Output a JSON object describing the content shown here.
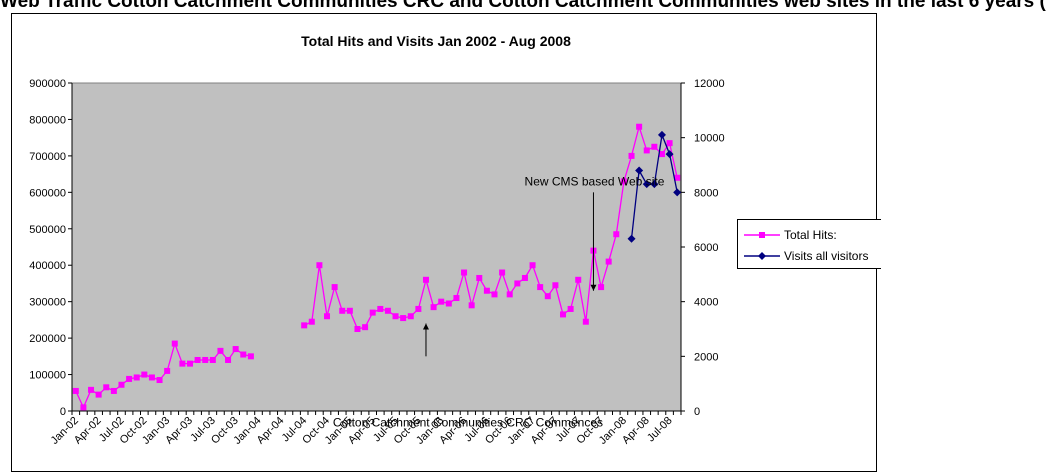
{
  "page_heading": "Web Traffic Cotton Catchment Communities CRC and Cotton Catchment Communities web sites in the last 6 years (",
  "chart_data": {
    "type": "line",
    "title": "Total Hits and Visits  Jan 2002 - Aug 2008",
    "x_labels": [
      "Jan-02",
      "Apr-02",
      "Jul-02",
      "Oct-02",
      "Jan-03",
      "Apr-03",
      "Jul-03",
      "Oct-03",
      "Jan-04",
      "Apr-04",
      "Jul-04",
      "Oct-04",
      "Jan-05",
      "Apr-05",
      "Jul-05",
      "Oct-05",
      "Jan-06",
      "Apr-06",
      "Jul-06",
      "Oct-06",
      "Jan-07",
      "Apr-07",
      "Jul-07",
      "Oct-07",
      "Jan-08",
      "Apr-08",
      "Jul-08"
    ],
    "y_left": {
      "min": 0,
      "max": 900000,
      "step": 100000,
      "ticks": [
        "0",
        "100000",
        "200000",
        "300000",
        "400000",
        "500000",
        "600000",
        "700000",
        "800000",
        "900000"
      ]
    },
    "y_right": {
      "min": 0,
      "max": 12000,
      "step": 2000,
      "ticks": [
        "0",
        "2000",
        "4000",
        "6000",
        "8000",
        "10000",
        "12000"
      ]
    },
    "plot_background": "#c0c0c0",
    "grid": false,
    "legend_position": "right",
    "series": [
      {
        "name": "Total Hits:",
        "axis": "left",
        "color": "#ff00ff",
        "marker": "square",
        "values": [
          55000,
          10000,
          58000,
          45000,
          65000,
          55000,
          72000,
          88000,
          92000,
          100000,
          92000,
          85000,
          110000,
          185000,
          130000,
          130000,
          140000,
          140000,
          140000,
          165000,
          140000,
          170000,
          155000,
          150000,
          null,
          null,
          null,
          null,
          null,
          null,
          235000,
          245000,
          400000,
          260000,
          340000,
          275000,
          275000,
          225000,
          230000,
          270000,
          280000,
          275000,
          260000,
          255000,
          260000,
          280000,
          360000,
          285000,
          300000,
          295000,
          310000,
          380000,
          290000,
          365000,
          330000,
          320000,
          380000,
          320000,
          350000,
          365000,
          400000,
          340000,
          315000,
          345000,
          265000,
          280000,
          360000,
          245000,
          440000,
          340000,
          410000,
          485000,
          630000,
          700000,
          780000,
          715000,
          725000,
          705000,
          735000,
          640000
        ]
      },
      {
        "name": "Visits all visitors",
        "axis": "right",
        "color": "#000080",
        "marker": "diamond",
        "start_index": 73,
        "values": [
          6300,
          8800,
          8300,
          8300,
          10100,
          9400,
          8000
        ]
      }
    ],
    "annotations": [
      {
        "text": "New CMS based Web site",
        "x_index": 68,
        "arrow_from_value": 600000,
        "arrow_to_value": 330000
      },
      {
        "text": "Cotton Catchment Communities CRC Commences",
        "x_index": 46,
        "arrow_from_value": 150000,
        "arrow_to_value": 240000
      }
    ]
  }
}
